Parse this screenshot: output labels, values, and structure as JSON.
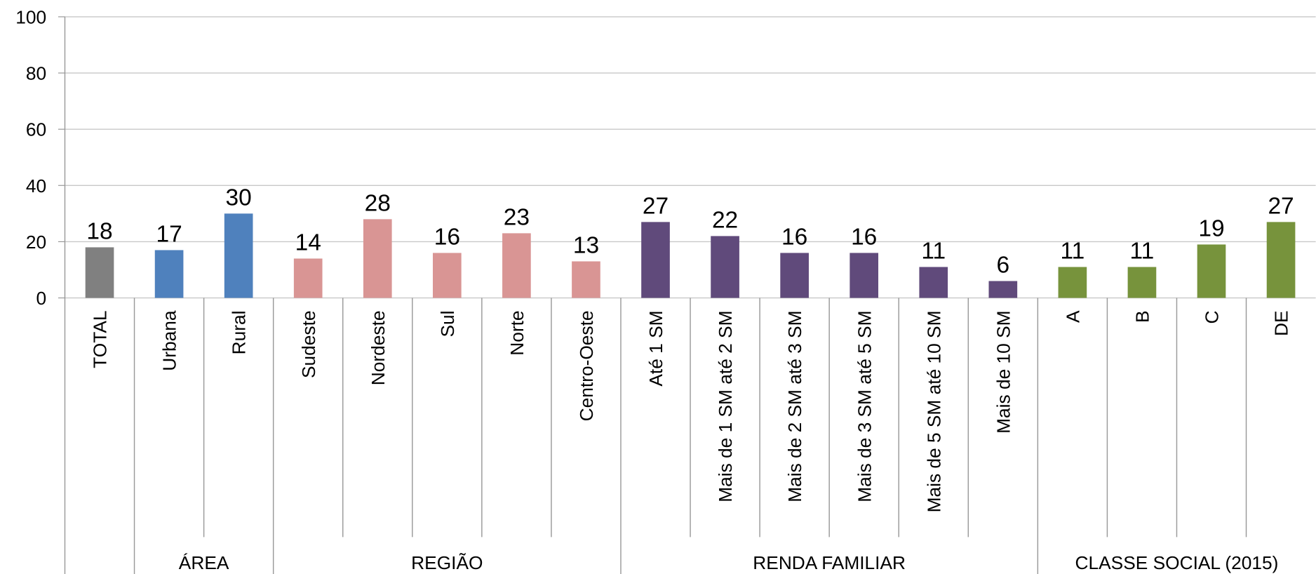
{
  "chart_data": {
    "type": "bar",
    "categories": [
      "TOTAL",
      "Urbana",
      "Rural",
      "Sudeste",
      "Nordeste",
      "Sul",
      "Norte",
      "Centro-Oeste",
      "Até 1 SM",
      "Mais de 1 SM até 2 SM",
      "Mais de 2 SM até 3 SM",
      "Mais de 3 SM até 5 SM",
      "Mais de 5 SM até 10 SM",
      "Mais de 10 SM",
      "A",
      "B",
      "C",
      "DE"
    ],
    "values": [
      18,
      17,
      30,
      14,
      28,
      16,
      23,
      13,
      27,
      22,
      16,
      16,
      11,
      6,
      11,
      11,
      19,
      27
    ],
    "colors": [
      "#808080",
      "#4f81bd",
      "#4f81bd",
      "#d99594",
      "#d99594",
      "#d99594",
      "#d99594",
      "#d99594",
      "#604a7b",
      "#604a7b",
      "#604a7b",
      "#604a7b",
      "#604a7b",
      "#604a7b",
      "#77933c",
      "#77933c",
      "#77933c",
      "#77933c"
    ],
    "groups": [
      "ÁREA",
      "REGIÃO",
      "RENDA FAMILIAR",
      "CLASSE SOCIAL (2015)"
    ],
    "category_groups": [
      null,
      0,
      0,
      1,
      1,
      1,
      1,
      1,
      2,
      2,
      2,
      2,
      2,
      2,
      3,
      3,
      3,
      3
    ],
    "ylim": [
      0,
      100
    ],
    "yticks": [
      0,
      20,
      40,
      60,
      80,
      100
    ],
    "grid": true
  }
}
